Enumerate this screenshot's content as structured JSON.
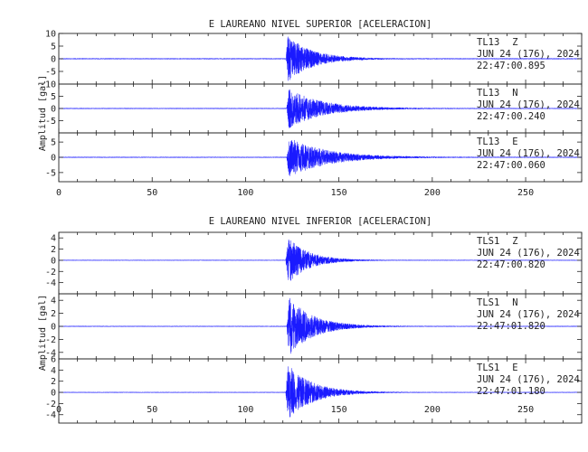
{
  "chart_data": [
    {
      "type": "line",
      "title": "E LAUREANO NIVEL SUPERIOR [ACELERACION]",
      "ylabel": "Amplitud [gal]",
      "xlabel": "",
      "xlim": [
        0,
        280
      ],
      "x_ticks": [
        0,
        50,
        100,
        150,
        200,
        250
      ],
      "x_tick_labels": [
        "0",
        "50",
        "100",
        "150",
        "200",
        "250"
      ],
      "grid": false,
      "traces": [
        {
          "station": "TL13",
          "component": "Z",
          "date": "JUN 24 (176), 2024",
          "time": "22:47:00.895",
          "ylim": [
            -10,
            10
          ],
          "y_ticks": [
            10,
            5,
            0,
            -5,
            -10
          ],
          "y_tick_labels": [
            "10",
            "5",
            "0",
            "-5",
            "-10"
          ],
          "onset_s": 121.5,
          "peak_amplitude": 9,
          "decay_s": 13,
          "noise": 0.35,
          "seed": 11
        },
        {
          "station": "TL13",
          "component": "N",
          "date": "JUN 24 (176), 2024",
          "time": "22:47:00.240",
          "ylim": [
            -10,
            10
          ],
          "y_ticks": [
            5,
            0,
            -5
          ],
          "y_tick_labels": [
            "5",
            "0",
            "-5"
          ],
          "onset_s": 122,
          "peak_amplitude": 8,
          "decay_s": 18,
          "noise": 0.3,
          "seed": 23
        },
        {
          "station": "TL13",
          "component": "E",
          "date": "JUN 24 (176), 2024",
          "time": "22:47:00.060",
          "ylim": [
            -8,
            8
          ],
          "y_ticks": [
            5,
            0,
            -5
          ],
          "y_tick_labels": [
            "5",
            "0",
            "-5"
          ],
          "onset_s": 122,
          "peak_amplitude": 6.5,
          "decay_s": 20,
          "noise": 0.25,
          "seed": 37
        }
      ]
    },
    {
      "type": "line",
      "title": "E LAUREANO NIVEL INFERIOR [ACELERACION]",
      "ylabel": "Amplitud [gal]",
      "xlabel": "",
      "xlim": [
        0,
        280
      ],
      "x_ticks": [
        0,
        50,
        100,
        150,
        200,
        250
      ],
      "x_tick_labels": [
        "0",
        "50",
        "100",
        "150",
        "200",
        "250"
      ],
      "grid": false,
      "traces": [
        {
          "station": "TLS1",
          "component": "Z",
          "date": "JUN 24 (176), 2024",
          "time": "22:47:00.820",
          "ylim": [
            -6,
            5
          ],
          "y_ticks": [
            4,
            2,
            0,
            -2,
            -4
          ],
          "y_tick_labels": [
            "4",
            "2",
            "0",
            "-2",
            "-4"
          ],
          "onset_s": 121.5,
          "peak_amplitude": 4.2,
          "decay_s": 11,
          "noise": 0.1,
          "seed": 41
        },
        {
          "station": "TLS1",
          "component": "N",
          "date": "JUN 24 (176), 2024",
          "time": "22:47:01.820",
          "ylim": [
            -5,
            5
          ],
          "y_ticks": [
            4,
            2,
            0,
            -2,
            -4
          ],
          "y_tick_labels": [
            "4",
            "2",
            "0",
            "-2",
            "-4"
          ],
          "onset_s": 122,
          "peak_amplitude": 4.5,
          "decay_s": 13,
          "noise": 0.1,
          "seed": 53
        },
        {
          "station": "TLS1",
          "component": "E",
          "date": "JUN 24 (176), 2024",
          "time": "22:47:01.180",
          "ylim": [
            -5.5,
            6
          ],
          "y_ticks": [
            6,
            4,
            2,
            0,
            -2,
            -4
          ],
          "y_tick_labels": [
            "6",
            "4",
            "2",
            "0",
            "-2",
            "-4"
          ],
          "onset_s": 121.5,
          "peak_amplitude": 5,
          "decay_s": 13,
          "noise": 0.1,
          "seed": 67
        }
      ]
    }
  ],
  "colors": {
    "trace": "#1a1aff",
    "frame": "#222222",
    "text": "#222222",
    "background": "#ffffff"
  }
}
